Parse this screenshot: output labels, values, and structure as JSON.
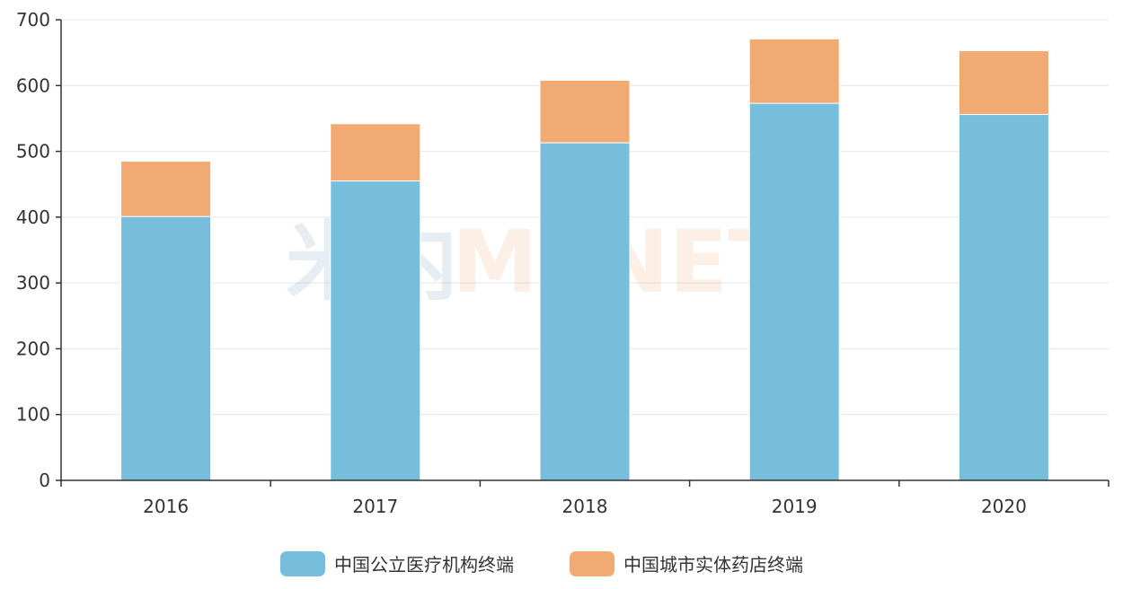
{
  "chart_data": {
    "type": "bar",
    "stacked": true,
    "categories": [
      "2016",
      "2017",
      "2018",
      "2019",
      "2020"
    ],
    "series": [
      {
        "name": "中国公立医疗机构终端",
        "values": [
          401,
          455,
          513,
          573,
          556
        ]
      },
      {
        "name": "中国城市实体药店终端",
        "values": [
          84,
          87,
          95,
          98,
          97
        ]
      }
    ],
    "title": "",
    "xlabel": "",
    "ylabel": "",
    "ylim": [
      0,
      700
    ],
    "yticks": [
      "0",
      "100",
      "200",
      "300",
      "400",
      "500",
      "600",
      "700"
    ],
    "grid": true,
    "legend_position": "bottom-center",
    "colors": [
      "#77bedd",
      "#f0aa72"
    ],
    "watermark": {
      "prefix": "米内",
      "brand": "MENET"
    }
  }
}
